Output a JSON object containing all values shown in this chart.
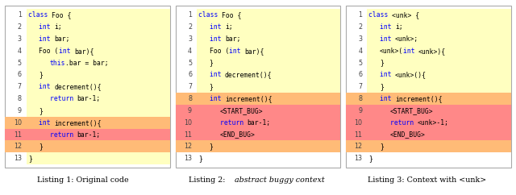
{
  "panels": [
    {
      "title_parts": [
        {
          "t": "Listing 1: Original code",
          "italic": false
        }
      ],
      "lines": [
        {
          "num": 1,
          "highlight": "yellow",
          "indent": 0,
          "tokens": [
            {
              "t": "class ",
              "c": "blue"
            },
            {
              "t": "Foo {",
              "c": "black"
            }
          ]
        },
        {
          "num": 2,
          "highlight": "yellow",
          "indent": 1,
          "tokens": [
            {
              "t": "int ",
              "c": "blue"
            },
            {
              "t": "i;",
              "c": "black"
            }
          ]
        },
        {
          "num": 3,
          "highlight": "yellow",
          "indent": 1,
          "tokens": [
            {
              "t": "int ",
              "c": "blue"
            },
            {
              "t": "bar;",
              "c": "black"
            }
          ]
        },
        {
          "num": 4,
          "highlight": "yellow",
          "indent": 1,
          "tokens": [
            {
              "t": "Foo (",
              "c": "black"
            },
            {
              "t": "int ",
              "c": "blue"
            },
            {
              "t": "bar){",
              "c": "black"
            }
          ]
        },
        {
          "num": 5,
          "highlight": "yellow",
          "indent": 2,
          "tokens": [
            {
              "t": "this",
              "c": "blue"
            },
            {
              "t": ".bar = bar;",
              "c": "black"
            }
          ]
        },
        {
          "num": 6,
          "highlight": "yellow",
          "indent": 1,
          "tokens": [
            {
              "t": "}",
              "c": "black"
            }
          ]
        },
        {
          "num": 7,
          "highlight": "yellow",
          "indent": 1,
          "tokens": [
            {
              "t": "int ",
              "c": "blue"
            },
            {
              "t": "decrement(){",
              "c": "black"
            }
          ]
        },
        {
          "num": 8,
          "highlight": "yellow",
          "indent": 2,
          "tokens": [
            {
              "t": "return ",
              "c": "blue"
            },
            {
              "t": "bar-1;",
              "c": "black"
            }
          ]
        },
        {
          "num": 9,
          "highlight": "yellow",
          "indent": 1,
          "tokens": [
            {
              "t": "}",
              "c": "black"
            }
          ]
        },
        {
          "num": 10,
          "highlight": "orange",
          "indent": 1,
          "hl_full": true,
          "tokens": [
            {
              "t": "int ",
              "c": "blue"
            },
            {
              "t": "increment(){",
              "c": "black"
            }
          ]
        },
        {
          "num": 11,
          "highlight": "red",
          "indent": 2,
          "hl_full": true,
          "tokens": [
            {
              "t": "return ",
              "c": "blue"
            },
            {
              "t": "bar-1;",
              "c": "black"
            }
          ]
        },
        {
          "num": 12,
          "highlight": "orange",
          "indent": 1,
          "hl_full": true,
          "tokens": [
            {
              "t": "}",
              "c": "black"
            }
          ]
        },
        {
          "num": 13,
          "highlight": "yellow",
          "indent": 0,
          "tokens": [
            {
              "t": "}",
              "c": "black"
            }
          ]
        }
      ]
    },
    {
      "title_parts": [
        {
          "t": "Listing 2: ",
          "italic": false
        },
        {
          "t": "abstract buggy context",
          "italic": true
        }
      ],
      "lines": [
        {
          "num": 1,
          "highlight": "yellow",
          "indent": 0,
          "tokens": [
            {
              "t": "class ",
              "c": "blue"
            },
            {
              "t": "Foo {",
              "c": "black"
            }
          ]
        },
        {
          "num": 2,
          "highlight": "yellow",
          "indent": 1,
          "tokens": [
            {
              "t": "int ",
              "c": "blue"
            },
            {
              "t": "i;",
              "c": "black"
            }
          ]
        },
        {
          "num": 3,
          "highlight": "yellow",
          "indent": 1,
          "tokens": [
            {
              "t": "int ",
              "c": "blue"
            },
            {
              "t": "bar;",
              "c": "black"
            }
          ]
        },
        {
          "num": 4,
          "highlight": "yellow",
          "indent": 1,
          "tokens": [
            {
              "t": "Foo (",
              "c": "black"
            },
            {
              "t": "int ",
              "c": "blue"
            },
            {
              "t": "bar){",
              "c": "black"
            }
          ]
        },
        {
          "num": 5,
          "highlight": "yellow",
          "indent": 1,
          "tokens": [
            {
              "t": "}",
              "c": "black"
            }
          ]
        },
        {
          "num": 6,
          "highlight": "yellow",
          "indent": 1,
          "tokens": [
            {
              "t": "int ",
              "c": "blue"
            },
            {
              "t": "decrement(){",
              "c": "black"
            }
          ]
        },
        {
          "num": 7,
          "highlight": "yellow",
          "indent": 1,
          "tokens": [
            {
              "t": "}",
              "c": "black"
            }
          ]
        },
        {
          "num": 8,
          "highlight": "orange",
          "indent": 1,
          "hl_full": true,
          "tokens": [
            {
              "t": "int ",
              "c": "blue"
            },
            {
              "t": "increment(){",
              "c": "black"
            }
          ]
        },
        {
          "num": 9,
          "highlight": "red",
          "indent": 2,
          "hl_full": true,
          "tokens": [
            {
              "t": "<START_BUG>",
              "c": "black"
            }
          ]
        },
        {
          "num": 10,
          "highlight": "red",
          "indent": 2,
          "hl_full": true,
          "tokens": [
            {
              "t": "return ",
              "c": "blue"
            },
            {
              "t": "bar-1;",
              "c": "black"
            }
          ]
        },
        {
          "num": 11,
          "highlight": "red",
          "indent": 2,
          "hl_full": true,
          "tokens": [
            {
              "t": "<END_BUG>",
              "c": "black"
            }
          ]
        },
        {
          "num": 12,
          "highlight": "orange",
          "indent": 1,
          "hl_full": true,
          "tokens": [
            {
              "t": "}",
              "c": "black"
            }
          ]
        },
        {
          "num": 13,
          "highlight": "none",
          "indent": 0,
          "tokens": [
            {
              "t": "}",
              "c": "black"
            }
          ]
        }
      ]
    },
    {
      "title_parts": [
        {
          "t": "Listing 3: Context with <unk>",
          "italic": false
        }
      ],
      "lines": [
        {
          "num": 1,
          "highlight": "yellow",
          "indent": 0,
          "tokens": [
            {
              "t": "class ",
              "c": "blue"
            },
            {
              "t": "<unk> {",
              "c": "black"
            }
          ]
        },
        {
          "num": 2,
          "highlight": "yellow",
          "indent": 1,
          "tokens": [
            {
              "t": "int ",
              "c": "blue"
            },
            {
              "t": "i;",
              "c": "black"
            }
          ]
        },
        {
          "num": 3,
          "highlight": "yellow",
          "indent": 1,
          "tokens": [
            {
              "t": "int ",
              "c": "blue"
            },
            {
              "t": "<unk>;",
              "c": "black"
            }
          ]
        },
        {
          "num": 4,
          "highlight": "yellow",
          "indent": 1,
          "tokens": [
            {
              "t": "<unk>(",
              "c": "black"
            },
            {
              "t": "int ",
              "c": "blue"
            },
            {
              "t": "<unk>){",
              "c": "black"
            }
          ]
        },
        {
          "num": 5,
          "highlight": "yellow",
          "indent": 1,
          "tokens": [
            {
              "t": "}",
              "c": "black"
            }
          ]
        },
        {
          "num": 6,
          "highlight": "yellow",
          "indent": 1,
          "tokens": [
            {
              "t": "int ",
              "c": "blue"
            },
            {
              "t": "<unk>(){",
              "c": "black"
            }
          ]
        },
        {
          "num": 7,
          "highlight": "yellow",
          "indent": 1,
          "tokens": [
            {
              "t": "}",
              "c": "black"
            }
          ]
        },
        {
          "num": 8,
          "highlight": "orange",
          "indent": 1,
          "hl_full": true,
          "tokens": [
            {
              "t": "int ",
              "c": "blue"
            },
            {
              "t": "increment(){",
              "c": "black"
            }
          ]
        },
        {
          "num": 9,
          "highlight": "red",
          "indent": 2,
          "hl_full": true,
          "tokens": [
            {
              "t": "<START_BUG>",
              "c": "black"
            }
          ]
        },
        {
          "num": 10,
          "highlight": "red",
          "indent": 2,
          "hl_full": true,
          "tokens": [
            {
              "t": "return ",
              "c": "blue"
            },
            {
              "t": "<unk>-1;",
              "c": "black"
            }
          ]
        },
        {
          "num": 11,
          "highlight": "red",
          "indent": 2,
          "hl_full": true,
          "tokens": [
            {
              "t": "<END_BUG>",
              "c": "black"
            }
          ]
        },
        {
          "num": 12,
          "highlight": "orange",
          "indent": 1,
          "hl_full": true,
          "tokens": [
            {
              "t": "}",
              "c": "black"
            }
          ]
        },
        {
          "num": 13,
          "highlight": "none",
          "indent": 0,
          "tokens": [
            {
              "t": "}",
              "c": "black"
            }
          ]
        }
      ]
    }
  ],
  "highlight_colors": {
    "yellow": "#FFFFC0",
    "orange": "#FFBB77",
    "red": "#FF8888",
    "none": "none"
  },
  "bg_color": "#FFFFFF",
  "border_color": "#AAAAAA",
  "line_num_color": "#444444",
  "code_font_size": 5.8,
  "title_font_size": 6.8,
  "fig_width": 6.4,
  "fig_height": 2.42,
  "fig_dpi": 100
}
